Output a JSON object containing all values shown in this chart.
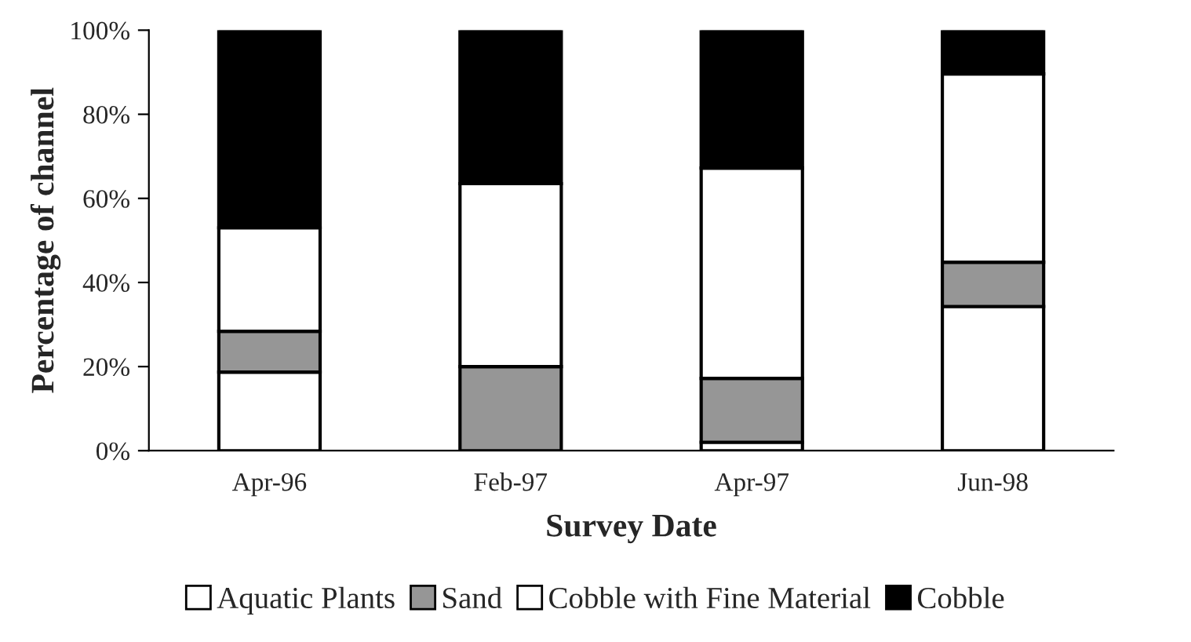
{
  "chart_data": {
    "type": "bar",
    "stacked": true,
    "xlabel": "Survey Date",
    "ylabel": "Percentage of channel",
    "categories": [
      "Apr-96",
      "Feb-97",
      "Apr-97",
      "Jun-98"
    ],
    "series": [
      {
        "name": "Aquatic Plants",
        "color": "#ffffff",
        "values": [
          18.7,
          0,
          2,
          34.3
        ]
      },
      {
        "name": "Sand",
        "color": "#969696",
        "values": [
          9.7,
          20,
          15.2,
          10.5
        ]
      },
      {
        "name": "Cobble with Fine Material",
        "color": "#ffffff",
        "values": [
          24.6,
          43.5,
          50,
          44.8
        ]
      },
      {
        "name": "Cobble",
        "color": "#000000",
        "values": [
          47,
          36.5,
          32.8,
          10.4
        ]
      }
    ],
    "ylim": [
      0,
      100
    ],
    "yticks": [
      {
        "value": 0,
        "label": "0%"
      },
      {
        "value": 20,
        "label": "20%"
      },
      {
        "value": 40,
        "label": "40%"
      },
      {
        "value": 60,
        "label": "60%"
      },
      {
        "value": 80,
        "label": "80%"
      },
      {
        "value": 100,
        "label": "100%"
      }
    ],
    "grid": false,
    "legend": "bottom"
  }
}
